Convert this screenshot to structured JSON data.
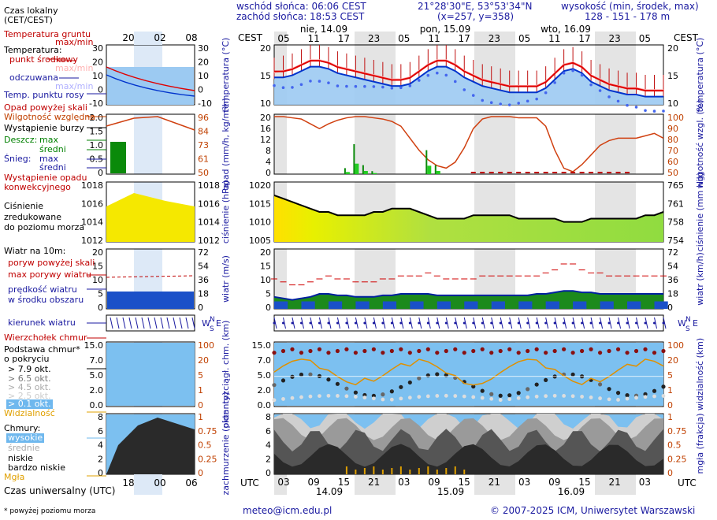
{
  "header": {
    "sunrise": "wschód słońca: 06:06 CEST",
    "sunset": "zachód słońca: 18:53 CEST",
    "coords": "21°28'30\"E, 53°53'34\"N",
    "grid": "(x=257, y=358)",
    "elevation_label": "wysokość (min, środek, max)",
    "elevation_values": "128 - 151 - 178 m"
  },
  "left_legend": {
    "local_time": "Czas lokalny",
    "local_time_zone": "(CET/CEST)",
    "ground_temp": "Temperatura gruntu",
    "ground_temp_sub": "max/min",
    "temperature": "Temperatura:",
    "mid_point": "punkt środkowy",
    "max_min": "max/min",
    "perceived": "odczuwana",
    "perceived_max_min": "max/min",
    "dew_point": "Temp. punktu rosy",
    "precip_above": "Opad powyżej skali",
    "rel_humidity": "Wilgotność względna",
    "storm": "Wystąpienie burzy",
    "rain": "Deszcz:",
    "rain_max": "max",
    "rain_mean": "średni",
    "snow": "Śnieg:",
    "snow_max": "max",
    "snow_mean": "średni",
    "conv_precip_1": "Wystąpienie opadu",
    "conv_precip_2": "konwekcyjnego",
    "pressure_1": "Ciśnienie",
    "pressure_2": "zredukowane",
    "pressure_3": "do poziomu morza",
    "wind_10m": "Wiatr na 10m:",
    "gust_above": "poryw powyżej skali",
    "max_gust": "max porywy wiatru",
    "mean_speed_1": "prędkość wiatru",
    "mean_speed_2": "w środku obszaru",
    "wind_dir": "kierunek wiatru",
    "cloud_top": "Wierzchołek chmur",
    "cloud_base_1": "Podstawa chmur*",
    "cloud_base_2": "o pokryciu",
    "okt_79": "> 7.9 okt.",
    "okt_65": "> 6.5 okt.",
    "okt_45": "> 4.5 okt.",
    "okt_25": "> 2.5 okt.",
    "okt_01": "> 0.1 okt.",
    "visibility": "Widzialność",
    "clouds": "Chmury:",
    "high": "wysokie",
    "mid": "średnie",
    "low": "niskie",
    "very_low": "bardzo niskie",
    "fog": "Mgła",
    "utc_time": "Czas uniwersalny (UTC)",
    "footnote": "* powyżej poziomu morza"
  },
  "time_axis": {
    "top_zone": "CEST",
    "bottom_zone": "UTC",
    "days": [
      "nie, 14.09",
      "pon, 15.09",
      "wto, 16.09"
    ],
    "bottom_days": [
      "14.09",
      "15.09",
      "16.09"
    ],
    "cest_ticks": [
      "05",
      "11",
      "17",
      "23",
      "05",
      "11",
      "17",
      "23",
      "05",
      "11",
      "17",
      "23",
      "05"
    ],
    "utc_ticks": [
      "03",
      "09",
      "15",
      "21",
      "03",
      "09",
      "15",
      "21",
      "03",
      "09",
      "15",
      "21",
      "03"
    ],
    "left_local_ticks": [
      "20",
      "02",
      "08"
    ],
    "left_utc_ticks": [
      "18",
      "00",
      "06"
    ]
  },
  "panels": {
    "temperature": {
      "ylabel_left": "temperatura (°C)",
      "ylabel_right": "temperatura (°C)",
      "ticks": [
        "20",
        "15",
        "10"
      ]
    },
    "precip": {
      "ylabel_left": "opad (mm/h, kg/m²h)",
      "ylabel_right": "wilgotność wzgl. (%)",
      "ticks_left": [
        "20",
        "16",
        "12",
        "8",
        "4",
        "0"
      ],
      "ticks_right": [
        "100",
        "90",
        "80",
        "70",
        "60",
        "50"
      ]
    },
    "pressure": {
      "ylabel_left": "ciśnienie (hPa)",
      "ylabel_right": "ciśnienie (mm Hg)",
      "ticks_left": [
        "1020",
        "1015",
        "1010",
        "1005"
      ],
      "ticks_right": [
        "765",
        "761",
        "758",
        "754"
      ]
    },
    "wind": {
      "ylabel_left": "wiatr (m/s)",
      "ylabel_right": "wiatr (km/h)",
      "ticks_left": [
        "20",
        "15",
        "10",
        "5",
        "0"
      ],
      "ticks_right": [
        "72",
        "54",
        "36",
        "18",
        "0"
      ]
    },
    "clouds_base": {
      "ylabel_left": "pion. rozciągł. chm. (km)",
      "ylabel_right": "widzialność (km)",
      "ticks_left": [
        "15.0",
        "7.0",
        "5.0",
        "2.0",
        "0.0"
      ],
      "ticks_right": [
        "100",
        "20",
        "5",
        "1",
        "0"
      ]
    },
    "cover": {
      "ylabel_left": "zachmurzenie (oktanty)",
      "ylabel_right": "mgła (frakcja)",
      "ticks_left": [
        "8",
        "6",
        "4",
        "2",
        "0"
      ],
      "ticks_right": [
        "1",
        "0.75",
        "0.5",
        "0.25",
        "0"
      ]
    }
  },
  "left_ticks": {
    "temp_left": [
      "30",
      "20",
      "10",
      "0",
      "-10"
    ],
    "temp_right": [
      "30",
      "20",
      "10",
      "0",
      "-10"
    ],
    "precip_left": [
      "2.0",
      "1.5",
      "1.0",
      "0.5",
      "0"
    ],
    "precip_right": [
      "96",
      "84",
      "73",
      "61",
      "50"
    ],
    "pres_left": [
      "1018",
      "1016",
      "1014",
      "1012"
    ],
    "pres_right": [
      "1018",
      "1016",
      "1014",
      "1012"
    ],
    "wind_left": [
      "20",
      "15",
      "10",
      "5",
      "0"
    ],
    "wind_right": [
      "72",
      "54",
      "36",
      "18",
      "0"
    ],
    "cb_left": [
      "15.0",
      "7.0",
      "5.0",
      "2.0",
      "0.0"
    ],
    "cb_right": [
      "100",
      "20",
      "5",
      "1",
      "0"
    ],
    "cv_left": [
      "8",
      "6",
      "4",
      "2",
      "0"
    ],
    "cv_right": [
      "1",
      "0.75",
      "0.5",
      "0.25",
      "0"
    ]
  },
  "footer": {
    "email": "meteo@icm.edu.pl",
    "copyright": "© 2007-2025 ICM, Uniwersytet Warszawski"
  },
  "chart_data": {
    "type": "line",
    "x_hours_utc_start": "2025-09-14T03:00Z",
    "temperature_mid": [
      15,
      15,
      15.5,
      16.5,
      17.5,
      17.5,
      17,
      16,
      15.5,
      15,
      14.5,
      14,
      13.5,
      13,
      13,
      13.5,
      15,
      16.5,
      17.5,
      17.5,
      16.5,
      15,
      14,
      13,
      12.5,
      12,
      11.5,
      11.5,
      11.5,
      11.5,
      12.5,
      14.5,
      16.5,
      17,
      16,
      14,
      13,
      12,
      11.5,
      11,
      11,
      10.5,
      10.5,
      10.5
    ],
    "temperature_max": [
      15.5,
      16,
      16.5,
      17.5,
      18.5,
      18.5,
      18,
      17,
      16.5,
      16,
      15.5,
      15,
      14.5,
      14,
      14,
      14.5,
      16,
      17.5,
      18.5,
      18.5,
      17.5,
      16,
      15,
      14,
      13.5,
      13,
      12.5,
      12.5,
      12.5,
      12.5,
      13.5,
      15.5,
      17.5,
      18,
      17,
      15,
      14,
      13,
      12.5,
      12,
      12,
      11.5,
      11.5,
      11.5
    ],
    "rel_humidity": [
      98,
      98,
      97,
      96,
      92,
      88,
      92,
      95,
      97,
      98,
      98,
      97,
      96,
      94,
      90,
      80,
      70,
      62,
      57,
      55,
      60,
      72,
      88,
      96,
      98,
      98,
      98,
      97,
      97,
      97,
      90,
      70,
      55,
      52,
      58,
      66,
      74,
      78,
      80,
      80,
      80,
      82,
      84,
      80
    ],
    "pressure_hpa": [
      1017,
      1016,
      1015,
      1014,
      1013,
      1012,
      1012,
      1011,
      1011,
      1011,
      1011,
      1012,
      1012,
      1013,
      1013,
      1013,
      1012,
      1011,
      1010,
      1010,
      1010,
      1010,
      1011,
      1011,
      1011,
      1011,
      1011,
      1010,
      1010,
      1010,
      1010,
      1010,
      1009,
      1009,
      1009,
      1010,
      1010,
      1010,
      1010,
      1010,
      1010,
      1011,
      1011,
      1012
    ],
    "wind_speed_ms": [
      4,
      3.5,
      3,
      3.5,
      4,
      5,
      5,
      4.5,
      4.5,
      4,
      4,
      4,
      4.5,
      4.5,
      5,
      5,
      5,
      5,
      4.5,
      4.5,
      4.5,
      4.5,
      4.5,
      4.5,
      4.5,
      4.5,
      4.5,
      4.5,
      4.5,
      5,
      5,
      5.5,
      6,
      6,
      5.5,
      5.5,
      5,
      5,
      5,
      5,
      5,
      5,
      5,
      5
    ],
    "wind_gust_ms": [
      10,
      9,
      8,
      8,
      9,
      10,
      11,
      10,
      10,
      9,
      9,
      9,
      10,
      10,
      11,
      11,
      11,
      12,
      11,
      10,
      10,
      10,
      10,
      11,
      11,
      11,
      11,
      11,
      11,
      11,
      12,
      13,
      15,
      15,
      13,
      12,
      12,
      11,
      11,
      11,
      11,
      11,
      11,
      11
    ],
    "precip_mm": [
      0,
      0,
      0,
      0,
      0,
      0,
      0,
      0,
      2,
      10,
      3,
      1,
      0,
      0,
      0,
      0,
      0,
      8,
      3,
      0,
      0,
      0,
      0,
      0,
      0,
      0,
      0,
      0,
      0,
      0,
      0,
      0,
      0,
      0,
      0,
      0,
      0,
      0,
      0,
      0,
      0,
      0,
      0,
      0
    ]
  }
}
